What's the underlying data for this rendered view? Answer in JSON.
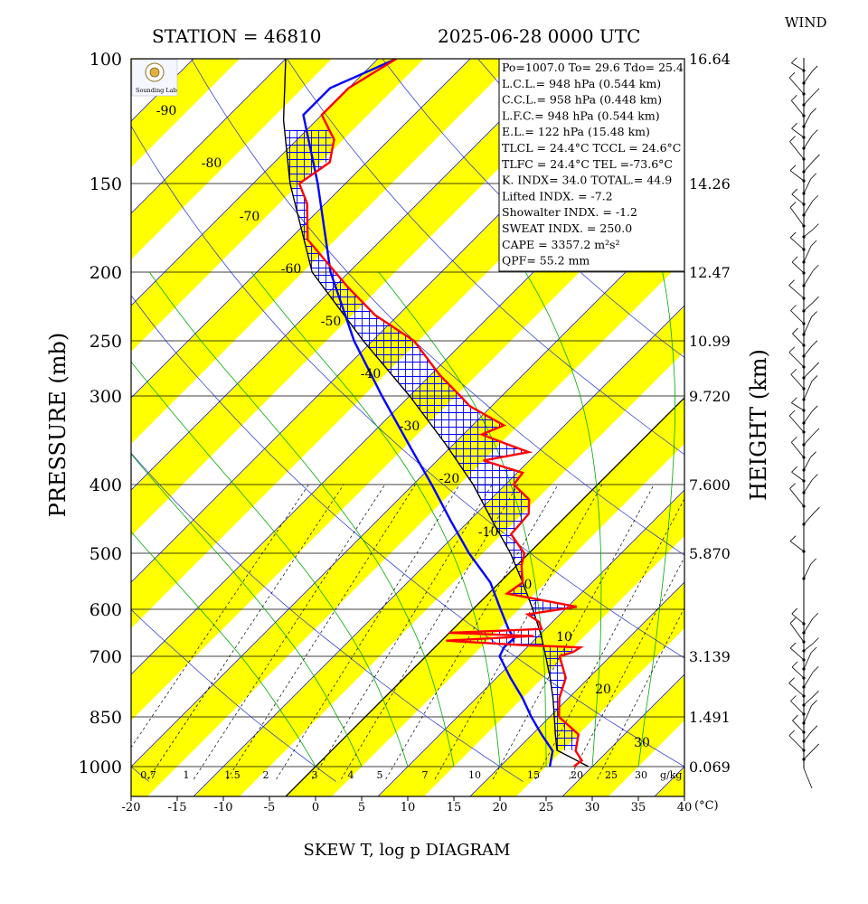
{
  "header": {
    "station": "STATION = 46810",
    "datetime": "2025-06-28 0000 UTC",
    "wind_title": "WIND"
  },
  "footer": {
    "title": "SKEW T, log p DIAGRAM"
  },
  "axes": {
    "y_left_label": "PRESSURE (mb)",
    "y_right_label": "HEIGHT (km)",
    "x_unit": "(°C)",
    "mixing_ratio_unit": "g/kg"
  },
  "colors": {
    "temperature": "#ff0000",
    "dewpoint": "#0000ff",
    "isotherm_band": "#ffff00",
    "isotherm_line": "#0000ff",
    "moist_adiabat": "#00aa00",
    "parcel_path": "#000000",
    "cape_hatch": "#0000ff"
  },
  "logo": {
    "text": "Sounding Lab"
  },
  "info_lines": [
    "Po=1007.0  To= 29.6  Tdo= 25.4",
    "L.C.L.= 948 hPa (0.544 km)",
    "C.C.L.= 958 hPa (0.448 km)",
    "L.F.C.= 948 hPa (0.544 km)",
    "E.L.= 122 hPa (15.48 km)",
    "TLCL = 24.4°C  TCCL = 24.6°C",
    "TLFC = 24.4°C  TEL =-73.6°C",
    "K. INDX= 34.0  TOTAL.= 44.9",
    "Lifted INDX. =   -7.2",
    "Showalter INDX. =   -1.2",
    "SWEAT INDX. =  250.0",
    "CAPE = 3357.2 m²s²",
    "QPF= 55.2 mm"
  ],
  "chart_data": {
    "type": "skew-T log-p",
    "x_ticks": [
      -20,
      -15,
      -10,
      -5,
      0,
      5,
      10,
      15,
      20,
      25,
      30,
      35,
      40
    ],
    "pressure_levels": [
      100,
      150,
      200,
      250,
      300,
      400,
      500,
      600,
      700,
      850,
      1000
    ],
    "height_labels_km": [
      "16.64",
      "14.26",
      "12.47",
      "10.99",
      "9.720",
      "7.600",
      "5.870",
      "",
      "3.139",
      "1.491",
      "0.069"
    ],
    "isotherm_labels": [
      "-90",
      "-80",
      "-70",
      "-60",
      "-50",
      "-40",
      "-30",
      "-20",
      "-10",
      "0",
      "10",
      "20",
      "30"
    ],
    "mixing_ratio_labels": [
      "0.7",
      "1",
      "1.5",
      "2",
      "3",
      "4",
      "5",
      "7",
      "10",
      "15",
      "20",
      "25",
      "30"
    ],
    "temperature": [
      {
        "p": 1000,
        "t": 28.0
      },
      {
        "p": 980,
        "t": 28.2
      },
      {
        "p": 950,
        "t": 26.5
      },
      {
        "p": 900,
        "t": 25.0
      },
      {
        "p": 850,
        "t": 21.0
      },
      {
        "p": 800,
        "t": 19.0
      },
      {
        "p": 750,
        "t": 17.5
      },
      {
        "p": 700,
        "t": 14.5
      },
      {
        "p": 690,
        "t": 15.5
      },
      {
        "p": 680,
        "t": 15.8
      },
      {
        "p": 675,
        "t": 9.3
      },
      {
        "p": 665,
        "t": 0.5
      },
      {
        "p": 655,
        "t": 9.5
      },
      {
        "p": 648,
        "t": 0.0
      },
      {
        "p": 640,
        "t": 9.6
      },
      {
        "p": 625,
        "t": 8.5
      },
      {
        "p": 610,
        "t": 6.5
      },
      {
        "p": 595,
        "t": 11.0
      },
      {
        "p": 570,
        "t": 2.0
      },
      {
        "p": 550,
        "t": 2.5
      },
      {
        "p": 520,
        "t": 0.5
      },
      {
        "p": 500,
        "t": -0.5
      },
      {
        "p": 470,
        "t": -4.0
      },
      {
        "p": 440,
        "t": -4.3
      },
      {
        "p": 420,
        "t": -5.8
      },
      {
        "p": 400,
        "t": -9.1
      },
      {
        "p": 385,
        "t": -9.4
      },
      {
        "p": 370,
        "t": -15.0
      },
      {
        "p": 360,
        "t": -11.0
      },
      {
        "p": 350,
        "t": -14.5
      },
      {
        "p": 340,
        "t": -18.0
      },
      {
        "p": 330,
        "t": -16.6
      },
      {
        "p": 310,
        "t": -22.4
      },
      {
        "p": 300,
        "t": -24.5
      },
      {
        "p": 280,
        "t": -29.0
      },
      {
        "p": 250,
        "t": -35.5
      },
      {
        "p": 230,
        "t": -42.5
      },
      {
        "p": 210,
        "t": -48.5
      },
      {
        "p": 200,
        "t": -51.5
      },
      {
        "p": 180,
        "t": -58.0
      },
      {
        "p": 160,
        "t": -62.0
      },
      {
        "p": 150,
        "t": -65.0
      },
      {
        "p": 140,
        "t": -64.0
      },
      {
        "p": 130,
        "t": -66.0
      },
      {
        "p": 120,
        "t": -70.0
      },
      {
        "p": 110,
        "t": -70.0
      },
      {
        "p": 100,
        "t": -68.0
      }
    ],
    "dewpoint": [
      {
        "p": 1000,
        "t": 25.4
      },
      {
        "p": 950,
        "t": 24.0
      },
      {
        "p": 900,
        "t": 21.0
      },
      {
        "p": 850,
        "t": 18.0
      },
      {
        "p": 800,
        "t": 15.0
      },
      {
        "p": 750,
        "t": 11.5
      },
      {
        "p": 700,
        "t": 8.0
      },
      {
        "p": 680,
        "t": 7.5
      },
      {
        "p": 660,
        "t": 7.6
      },
      {
        "p": 640,
        "t": 6.0
      },
      {
        "p": 600,
        "t": 3.0
      },
      {
        "p": 550,
        "t": -1.0
      },
      {
        "p": 500,
        "t": -6.5
      },
      {
        "p": 450,
        "t": -12.0
      },
      {
        "p": 400,
        "t": -18.0
      },
      {
        "p": 350,
        "t": -25.0
      },
      {
        "p": 300,
        "t": -33.0
      },
      {
        "p": 250,
        "t": -42.0
      },
      {
        "p": 200,
        "t": -52.0
      },
      {
        "p": 150,
        "t": -63.0
      },
      {
        "p": 120,
        "t": -72.0
      },
      {
        "p": 110,
        "t": -72.0
      },
      {
        "p": 100,
        "t": -68.0
      }
    ],
    "parcel": [
      {
        "p": 1000,
        "t": 29.6
      },
      {
        "p": 948,
        "t": 24.4
      },
      {
        "p": 900,
        "t": 22.5
      },
      {
        "p": 850,
        "t": 20.5
      },
      {
        "p": 800,
        "t": 18.3
      },
      {
        "p": 750,
        "t": 15.8
      },
      {
        "p": 700,
        "t": 13.0
      },
      {
        "p": 650,
        "t": 10.0
      },
      {
        "p": 600,
        "t": 6.5
      },
      {
        "p": 550,
        "t": 2.5
      },
      {
        "p": 500,
        "t": -2.0
      },
      {
        "p": 450,
        "t": -7.5
      },
      {
        "p": 400,
        "t": -13.5
      },
      {
        "p": 350,
        "t": -21.0
      },
      {
        "p": 300,
        "t": -30.0
      },
      {
        "p": 250,
        "t": -41.0
      },
      {
        "p": 200,
        "t": -54.0
      },
      {
        "p": 150,
        "t": -66.0
      },
      {
        "p": 122,
        "t": -73.6
      },
      {
        "p": 100,
        "t": -80.0
      }
    ]
  }
}
